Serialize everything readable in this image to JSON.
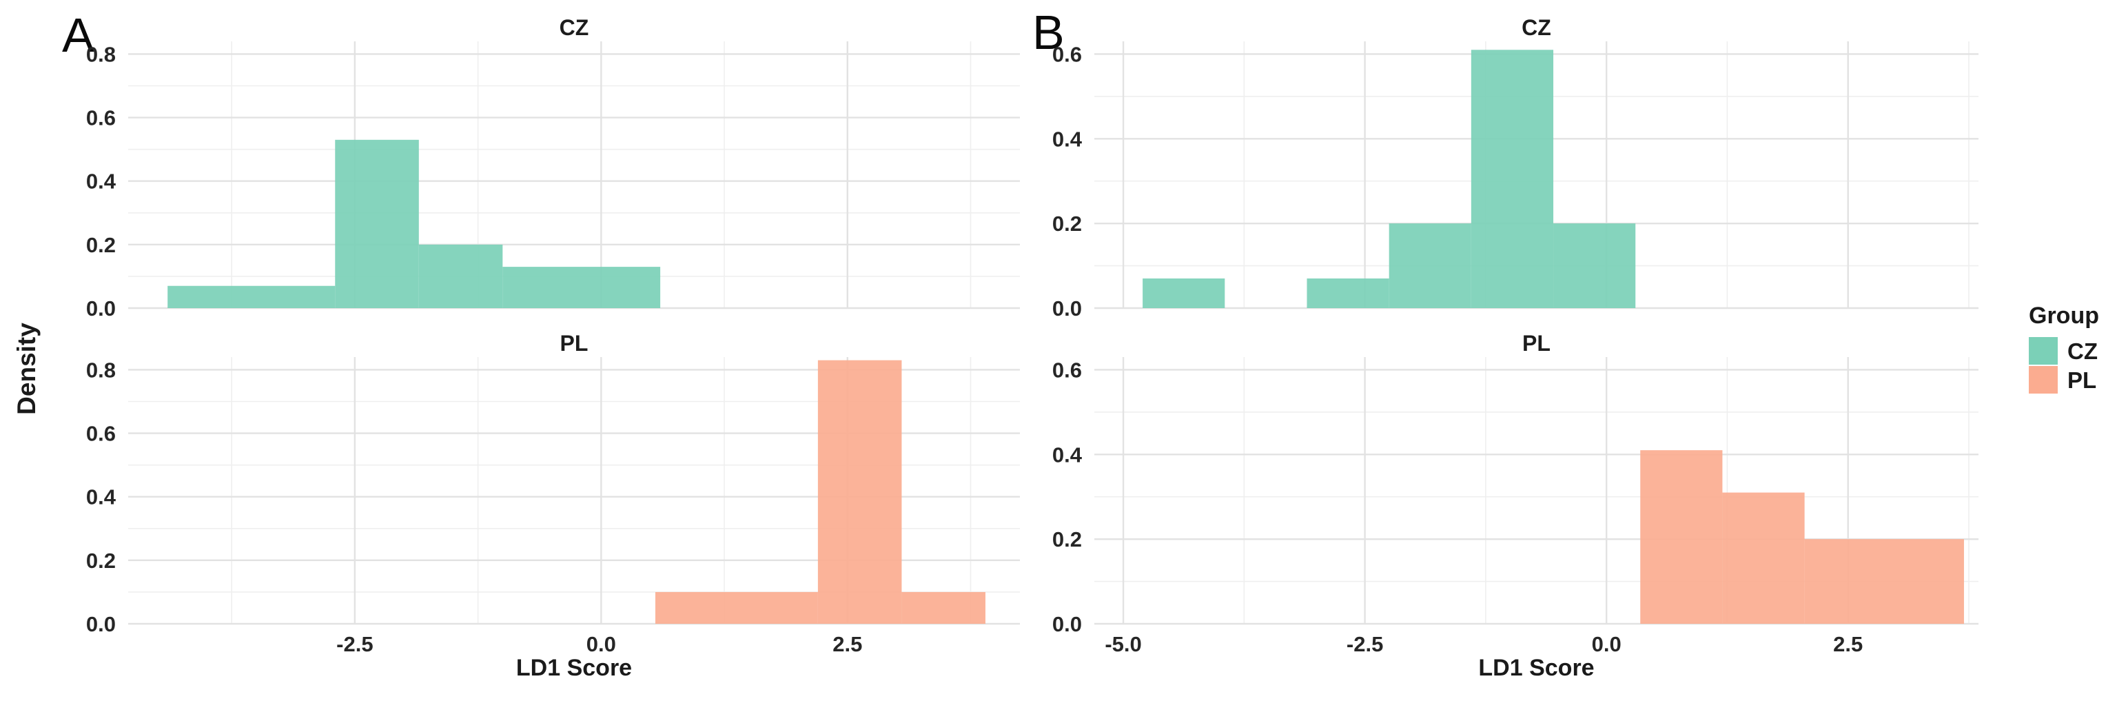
{
  "figure": {
    "panels": [
      {
        "label": "A"
      },
      {
        "label": "B"
      }
    ],
    "ylabel": "Density",
    "xlabel": "LD1 Score",
    "background_color": "#ffffff",
    "gridline_major_color": "#e2e2e2",
    "gridline_minor_color": "#efefef",
    "legend": {
      "title": "Group",
      "position": "right-center",
      "items": [
        {
          "label": "CZ",
          "color": "#7BD0B7"
        },
        {
          "label": "PL",
          "color": "#FBAC90"
        }
      ]
    }
  },
  "chart_data": [
    {
      "type": "bar",
      "mark": "histogram",
      "panel": "A",
      "facet": "CZ",
      "group": "CZ",
      "color": "#7BD0B7",
      "title": "CZ",
      "xlabel": "LD1 Score",
      "ylabel": "Density",
      "xlim": [
        -4.8,
        4.25
      ],
      "ylim": [
        0,
        0.84
      ],
      "xticks": [
        -2.5,
        0,
        2.5
      ],
      "yticks": [
        0,
        0.2,
        0.4,
        0.6,
        0.8
      ],
      "grid": "on",
      "bars": [
        {
          "x0": -4.4,
          "x1": -2.7,
          "density": 0.07
        },
        {
          "x0": -2.7,
          "x1": -1.85,
          "density": 0.53
        },
        {
          "x0": -1.85,
          "x1": -1.0,
          "density": 0.2
        },
        {
          "x0": -1.0,
          "x1": 0.6,
          "density": 0.13
        }
      ]
    },
    {
      "type": "bar",
      "mark": "histogram",
      "panel": "A",
      "facet": "PL",
      "group": "PL",
      "color": "#FBAC90",
      "title": "PL",
      "xlabel": "LD1 Score",
      "ylabel": "Density",
      "xlim": [
        -4.8,
        4.25
      ],
      "ylim": [
        0,
        0.84
      ],
      "xticks": [
        -2.5,
        0,
        2.5
      ],
      "yticks": [
        0,
        0.2,
        0.4,
        0.6,
        0.8
      ],
      "grid": "on",
      "bars": [
        {
          "x0": 0.55,
          "x1": 2.2,
          "density": 0.1
        },
        {
          "x0": 2.2,
          "x1": 3.05,
          "density": 0.83
        },
        {
          "x0": 3.05,
          "x1": 3.9,
          "density": 0.1
        }
      ]
    },
    {
      "type": "bar",
      "mark": "histogram",
      "panel": "B",
      "facet": "CZ",
      "group": "CZ",
      "color": "#7BD0B7",
      "title": "CZ",
      "xlabel": "LD1 Score",
      "ylabel": "Density",
      "xlim": [
        -5.3,
        3.85
      ],
      "ylim": [
        0,
        0.63
      ],
      "xticks": [
        -5,
        -2.5,
        0,
        2.5
      ],
      "yticks": [
        0,
        0.2,
        0.4,
        0.6
      ],
      "grid": "on",
      "bars": [
        {
          "x0": -4.8,
          "x1": -3.95,
          "density": 0.07
        },
        {
          "x0": -3.1,
          "x1": -2.25,
          "density": 0.07
        },
        {
          "x0": -2.25,
          "x1": -1.4,
          "density": 0.2
        },
        {
          "x0": -1.4,
          "x1": -0.55,
          "density": 0.61
        },
        {
          "x0": -0.55,
          "x1": 0.3,
          "density": 0.2
        }
      ]
    },
    {
      "type": "bar",
      "mark": "histogram",
      "panel": "B",
      "facet": "PL",
      "group": "PL",
      "color": "#FBAC90",
      "title": "PL",
      "xlabel": "LD1 Score",
      "ylabel": "Density",
      "xlim": [
        -5.3,
        3.85
      ],
      "ylim": [
        0,
        0.63
      ],
      "xticks": [
        -5,
        -2.5,
        0,
        2.5
      ],
      "yticks": [
        0,
        0.2,
        0.4,
        0.6
      ],
      "grid": "on",
      "bars": [
        {
          "x0": 0.35,
          "x1": 1.2,
          "density": 0.41
        },
        {
          "x0": 1.2,
          "x1": 2.05,
          "density": 0.31
        },
        {
          "x0": 2.05,
          "x1": 3.7,
          "density": 0.2
        }
      ]
    }
  ]
}
